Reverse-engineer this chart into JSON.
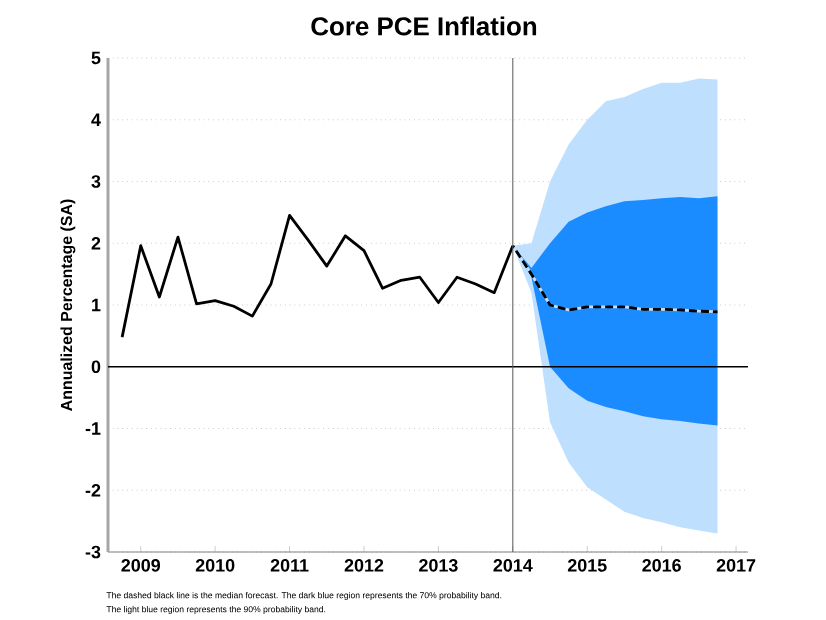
{
  "chart_data": {
    "type": "line",
    "title": "Core PCE Inflation",
    "ylabel": "Annualized Percentage (SA)",
    "xlim": [
      2008.56,
      2017.16
    ],
    "xticks": [
      2009,
      2010,
      2011,
      2012,
      2013,
      2014,
      2015,
      2016,
      2017
    ],
    "ylim": [
      -3,
      5
    ],
    "yticks": [
      -3,
      -2,
      -1,
      0,
      1,
      2,
      3,
      4,
      5
    ],
    "grid": "y",
    "series": [
      {
        "color": "#bfdfff",
        "line_style": "dashed",
        "x": [
          2014.0,
          2014.25,
          2014.5,
          2014.75,
          2015.0,
          2015.25,
          2015.5,
          2015.75,
          2016.0,
          2016.25,
          2016.5,
          2016.75
        ],
        "values": [
          1.96,
          1.5,
          1.0,
          0.92,
          0.97,
          0.97,
          0.97,
          0.93,
          0.93,
          0.92,
          0.9,
          0.89
        ],
        "lower": [
          1.96,
          1.2,
          -0.9,
          -1.55,
          -1.95,
          -2.15,
          -2.35,
          -2.45,
          -2.52,
          -2.6,
          -2.65,
          -2.7
        ],
        "upper": [
          1.96,
          2.0,
          3.0,
          3.6,
          4.0,
          4.3,
          4.37,
          4.5,
          4.6,
          4.6,
          4.67,
          4.65
        ]
      },
      {
        "color": "#000000",
        "line_style": "dashed",
        "colors": [
          "#1a8cff",
          "#1a8cff",
          "#1a8cff",
          "#1a8cff",
          "#1a8cff",
          "#1a8cff",
          "#1a8cff",
          "#1a8cff",
          "#1a8cff",
          "#1a8cff",
          "#1a8cff",
          "#1a8cff"
        ],
        "x": [
          2014.0,
          2014.25,
          2014.5,
          2014.75,
          2015.0,
          2015.25,
          2015.5,
          2015.75,
          2016.0,
          2016.25,
          2016.5,
          2016.75
        ],
        "values": [
          1.96,
          1.5,
          1.0,
          0.92,
          0.97,
          0.97,
          0.97,
          0.93,
          0.93,
          0.92,
          0.9,
          0.89
        ],
        "lower": [
          1.96,
          1.45,
          0.0,
          -0.35,
          -0.55,
          -0.65,
          -0.72,
          -0.8,
          -0.85,
          -0.88,
          -0.92,
          -0.95
        ],
        "upper": [
          1.96,
          1.6,
          2.0,
          2.35,
          2.5,
          2.6,
          2.68,
          2.7,
          2.73,
          2.75,
          2.73,
          2.76
        ]
      },
      {
        "color": "#000000",
        "line_style": "solid",
        "x": [
          2008.75,
          2009.0,
          2009.25,
          2009.5,
          2009.75,
          2010.0,
          2010.25,
          2010.5,
          2010.75,
          2011.0,
          2011.25,
          2011.5,
          2011.75,
          2012.0,
          2012.25,
          2012.5,
          2012.75,
          2013.0,
          2013.25,
          2013.5,
          2013.75,
          2014.0
        ],
        "values": [
          0.48,
          1.96,
          1.13,
          2.1,
          1.02,
          1.07,
          0.98,
          0.82,
          1.34,
          2.45,
          2.05,
          1.63,
          2.12,
          1.88,
          1.27,
          1.4,
          1.45,
          1.04,
          1.45,
          1.34,
          1.2,
          1.96
        ]
      }
    ],
    "ref_lines": [
      {
        "axis": "y",
        "value": 0,
        "color": "#000000"
      },
      {
        "axis": "x",
        "value": 2014,
        "color": "#555555"
      }
    ],
    "annotations": [
      "The dashed black line is the median forecast. The dark blue region represents the 70% probability band.",
      "The light blue region represents the 90% probability band."
    ]
  }
}
